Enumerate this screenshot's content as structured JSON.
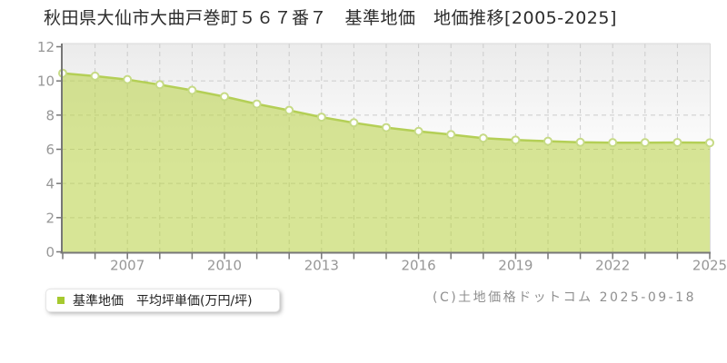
{
  "title": "秋田県大仙市大曲戸巻町５６７番７　基準地価　地価推移[2005-2025]",
  "legend": {
    "label": "基準地価　平均坪単価(万円/坪)",
    "marker_color": "#a6c92f"
  },
  "copyright": "(C)土地価格ドットコム 2025-09-18",
  "chart_data": {
    "type": "area",
    "title": "秋田県大仙市大曲戸巻町５６７番７ 基準地価 地価推移[2005-2025]",
    "x": [
      2005,
      2006,
      2007,
      2008,
      2009,
      2010,
      2011,
      2012,
      2013,
      2014,
      2015,
      2016,
      2017,
      2018,
      2019,
      2020,
      2021,
      2022,
      2023,
      2024,
      2025
    ],
    "series": [
      {
        "name": "基準地価 平均坪単価(万円/坪)",
        "values": [
          10.45,
          10.28,
          10.08,
          9.78,
          9.45,
          9.08,
          8.65,
          8.28,
          7.88,
          7.55,
          7.27,
          7.05,
          6.86,
          6.65,
          6.54,
          6.47,
          6.41,
          6.39,
          6.39,
          6.4,
          6.38
        ]
      }
    ],
    "xlabel": "",
    "ylabel": "平均坪単価(万円/坪)",
    "ylim": [
      0,
      12
    ],
    "yticks": [
      0,
      2,
      4,
      6,
      8,
      10,
      12
    ],
    "xticks": [
      2007,
      2010,
      2013,
      2016,
      2019,
      2022,
      2025
    ],
    "grid": true,
    "legend_position": "bottom-left",
    "colors": {
      "line": "#b4cf56",
      "fill": "rgba(186,210,74,0.58)",
      "marker_fill": "#ffffff",
      "marker_stroke": "#c6da85",
      "grid": "#cbcbcb",
      "axis": "#777777",
      "border": "#d9d9d9",
      "tick_label": "#979797",
      "plot_bg_top": "#ebebeb",
      "plot_bg_bottom": "#ffffff"
    }
  }
}
